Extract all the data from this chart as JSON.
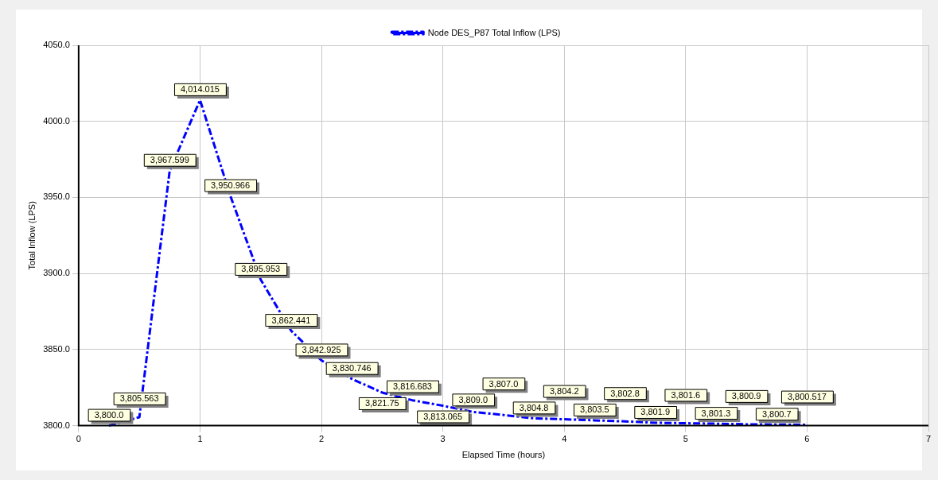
{
  "chart_data": {
    "type": "line",
    "xlabel": "Elapsed Time (hours)",
    "ylabel": "Total Inflow (LPS)",
    "x": [
      0.25,
      0.5,
      0.75,
      1,
      1.25,
      1.5,
      1.75,
      2,
      2.25,
      2.5,
      2.75,
      3,
      3.25,
      3.5,
      3.75,
      4,
      4.25,
      4.5,
      4.75,
      5,
      5.25,
      5.5,
      5.75,
      6
    ],
    "series": [
      {
        "name": "Node DES_P87 Total Inflow (LPS)",
        "color": "#0000ff",
        "values": [
          3800.0,
          3805.563,
          3967.599,
          4014.015,
          3950.966,
          3895.953,
          3862.441,
          3842.925,
          3830.746,
          3821.75,
          3816.683,
          3813.065,
          3809.0,
          3807.0,
          3804.8,
          3804.2,
          3803.5,
          3802.8,
          3801.9,
          3801.6,
          3801.3,
          3800.9,
          3800.7,
          3800.517
        ],
        "value_labels": [
          "3,800.0",
          "3,805.563",
          "3,967.599",
          "4,014.015",
          "3,950.966",
          "3,895.953",
          "3,862.441",
          "3,842.925",
          "3,830.746",
          "3,821.75",
          "3,816.683",
          "3,813.065",
          "3,809.0",
          "3,807.0",
          "3,804.8",
          "3,804.2",
          "3,803.5",
          "3,802.8",
          "3,801.9",
          "3,801.6",
          "3,801.3",
          "3,800.9",
          "3,800.7",
          "3,800.517"
        ]
      }
    ],
    "xlim": [
      0,
      7
    ],
    "xticks": [
      0,
      1,
      2,
      3,
      4,
      5,
      6,
      7
    ],
    "ylim": [
      3800,
      4050
    ],
    "yticks": [
      {
        "value": 3800,
        "label": "3800.0"
      },
      {
        "value": 3850,
        "label": "3850.0"
      },
      {
        "value": 3900,
        "label": "3900.0"
      },
      {
        "value": 3950,
        "label": "3950.0"
      },
      {
        "value": 4000,
        "label": "4000.0"
      },
      {
        "value": 4050,
        "label": "4050.0"
      }
    ],
    "grid": true,
    "legend": "top",
    "marker": "none",
    "line_style": "dashed"
  }
}
